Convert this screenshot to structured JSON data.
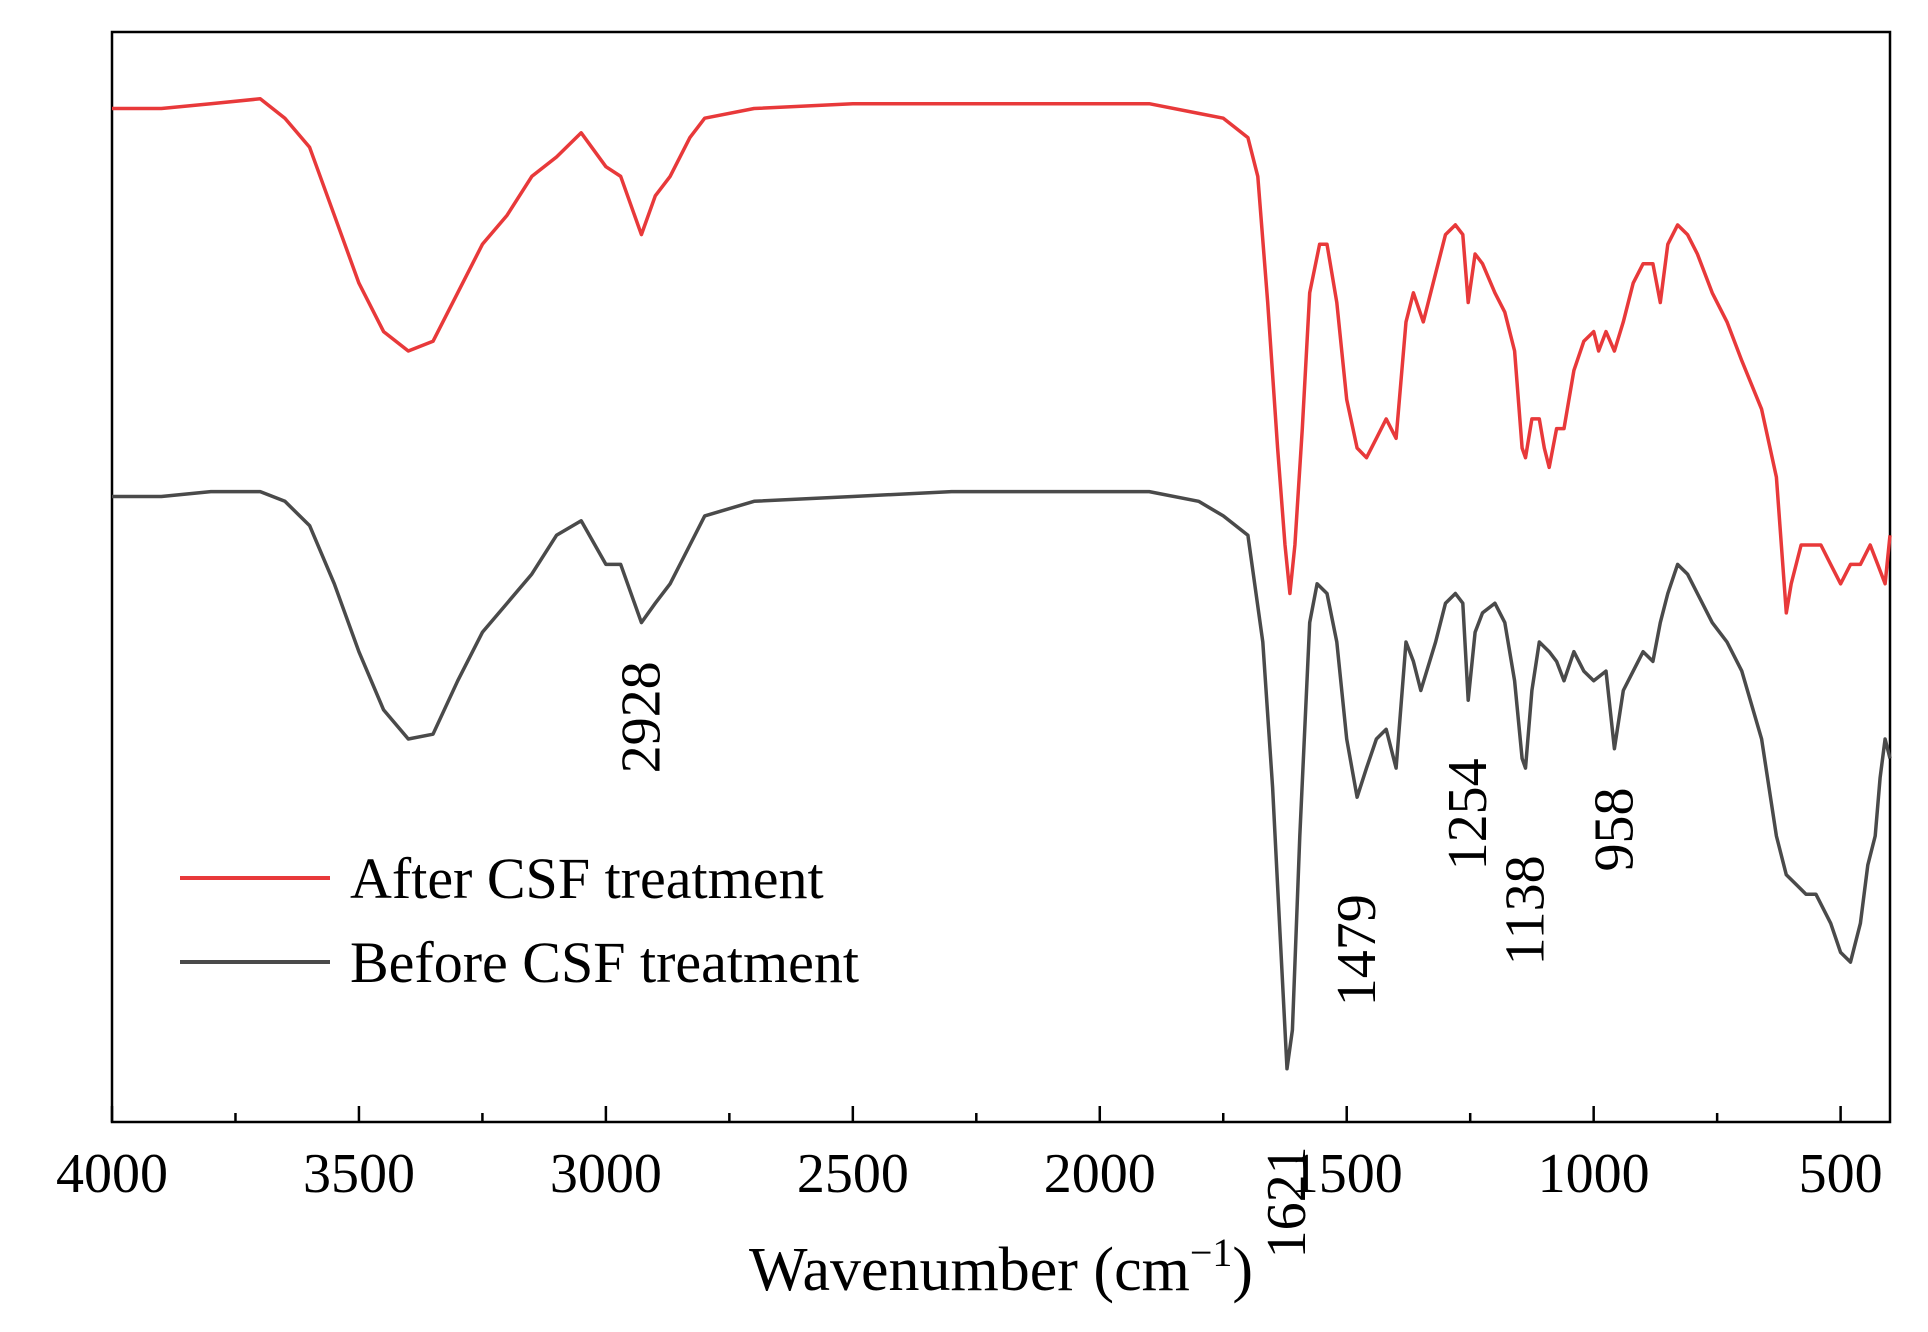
{
  "chart_data": {
    "type": "line",
    "title": "",
    "xlabel": "Wavenumber (cm",
    "xlabel_sup": "−1",
    "xlabel_close": ")",
    "ylabel": "",
    "xlim": [
      4000,
      400
    ],
    "ylim": [
      0,
      100
    ],
    "x_reversed": true,
    "grid": false,
    "x_ticks": [
      4000,
      3500,
      3000,
      2500,
      2000,
      1500,
      1000,
      500
    ],
    "x_tick_labels": [
      "4000",
      "3500",
      "3000",
      "2500",
      "2000",
      "1500",
      "1000",
      "500"
    ],
    "legend_position": "bottom-left",
    "series": [
      {
        "name": "After CSF treatment",
        "color": "#e8393a",
        "points": [
          [
            4000,
            95
          ],
          [
            3900,
            95
          ],
          [
            3800,
            95.5
          ],
          [
            3700,
            96
          ],
          [
            3650,
            94
          ],
          [
            3600,
            91
          ],
          [
            3550,
            84
          ],
          [
            3500,
            77
          ],
          [
            3450,
            72
          ],
          [
            3400,
            70
          ],
          [
            3350,
            71
          ],
          [
            3300,
            76
          ],
          [
            3250,
            81
          ],
          [
            3200,
            84
          ],
          [
            3150,
            88
          ],
          [
            3100,
            90
          ],
          [
            3050,
            92.5
          ],
          [
            3000,
            89
          ],
          [
            2970,
            88
          ],
          [
            2928,
            82
          ],
          [
            2900,
            86
          ],
          [
            2870,
            88
          ],
          [
            2830,
            92
          ],
          [
            2800,
            94
          ],
          [
            2700,
            95
          ],
          [
            2500,
            95.5
          ],
          [
            2300,
            95.5
          ],
          [
            2100,
            95.5
          ],
          [
            2000,
            95.5
          ],
          [
            1900,
            95.5
          ],
          [
            1800,
            94.5
          ],
          [
            1750,
            94
          ],
          [
            1700,
            92
          ],
          [
            1680,
            88
          ],
          [
            1660,
            75
          ],
          [
            1640,
            60
          ],
          [
            1625,
            50
          ],
          [
            1615,
            45
          ],
          [
            1605,
            50
          ],
          [
            1590,
            62
          ],
          [
            1575,
            76
          ],
          [
            1555,
            81
          ],
          [
            1540,
            81
          ],
          [
            1520,
            75
          ],
          [
            1500,
            65
          ],
          [
            1479,
            60
          ],
          [
            1460,
            59
          ],
          [
            1440,
            61
          ],
          [
            1420,
            63
          ],
          [
            1400,
            61
          ],
          [
            1380,
            73
          ],
          [
            1365,
            76
          ],
          [
            1345,
            73
          ],
          [
            1320,
            78
          ],
          [
            1300,
            82
          ],
          [
            1280,
            83
          ],
          [
            1265,
            82
          ],
          [
            1254,
            75
          ],
          [
            1240,
            80
          ],
          [
            1225,
            79
          ],
          [
            1200,
            76
          ],
          [
            1180,
            74
          ],
          [
            1160,
            70
          ],
          [
            1145,
            60
          ],
          [
            1138,
            59
          ],
          [
            1125,
            63
          ],
          [
            1110,
            63
          ],
          [
            1100,
            60
          ],
          [
            1090,
            58
          ],
          [
            1075,
            62
          ],
          [
            1060,
            62
          ],
          [
            1040,
            68
          ],
          [
            1020,
            71
          ],
          [
            1000,
            72
          ],
          [
            990,
            70
          ],
          [
            975,
            72
          ],
          [
            958,
            70
          ],
          [
            940,
            73
          ],
          [
            920,
            77
          ],
          [
            900,
            79
          ],
          [
            880,
            79
          ],
          [
            865,
            75
          ],
          [
            850,
            81
          ],
          [
            830,
            83
          ],
          [
            810,
            82
          ],
          [
            790,
            80
          ],
          [
            760,
            76
          ],
          [
            730,
            73
          ],
          [
            700,
            69
          ],
          [
            660,
            64
          ],
          [
            630,
            57
          ],
          [
            610,
            43
          ],
          [
            600,
            46
          ],
          [
            580,
            50
          ],
          [
            560,
            50
          ],
          [
            540,
            50
          ],
          [
            520,
            48
          ],
          [
            500,
            46
          ],
          [
            480,
            48
          ],
          [
            460,
            48
          ],
          [
            440,
            50
          ],
          [
            425,
            48
          ],
          [
            410,
            46
          ],
          [
            400,
            51
          ]
        ]
      },
      {
        "name": "Before CSF treatment",
        "color": "#4a4a4a",
        "points": [
          [
            4000,
            55
          ],
          [
            3900,
            55
          ],
          [
            3800,
            55.5
          ],
          [
            3700,
            55.5
          ],
          [
            3650,
            54.5
          ],
          [
            3600,
            52
          ],
          [
            3550,
            46
          ],
          [
            3500,
            39
          ],
          [
            3450,
            33
          ],
          [
            3400,
            30
          ],
          [
            3350,
            30.5
          ],
          [
            3300,
            36
          ],
          [
            3250,
            41
          ],
          [
            3200,
            44
          ],
          [
            3150,
            47
          ],
          [
            3100,
            51
          ],
          [
            3050,
            52.5
          ],
          [
            3000,
            48
          ],
          [
            2970,
            48
          ],
          [
            2928,
            42
          ],
          [
            2900,
            44
          ],
          [
            2870,
            46
          ],
          [
            2830,
            50
          ],
          [
            2800,
            53
          ],
          [
            2700,
            54.5
          ],
          [
            2500,
            55
          ],
          [
            2300,
            55.5
          ],
          [
            2100,
            55.5
          ],
          [
            2000,
            55.5
          ],
          [
            1900,
            55.5
          ],
          [
            1800,
            54.5
          ],
          [
            1750,
            53
          ],
          [
            1700,
            51
          ],
          [
            1670,
            40
          ],
          [
            1650,
            25
          ],
          [
            1635,
            10
          ],
          [
            1621,
            -4
          ],
          [
            1610,
            0
          ],
          [
            1595,
            20
          ],
          [
            1575,
            42
          ],
          [
            1560,
            46
          ],
          [
            1540,
            45
          ],
          [
            1520,
            40
          ],
          [
            1500,
            30
          ],
          [
            1479,
            24
          ],
          [
            1460,
            27
          ],
          [
            1440,
            30
          ],
          [
            1420,
            31
          ],
          [
            1400,
            27
          ],
          [
            1380,
            40
          ],
          [
            1365,
            38
          ],
          [
            1350,
            35
          ],
          [
            1320,
            40
          ],
          [
            1300,
            44
          ],
          [
            1280,
            45
          ],
          [
            1265,
            44
          ],
          [
            1254,
            34
          ],
          [
            1240,
            41
          ],
          [
            1225,
            43
          ],
          [
            1200,
            44
          ],
          [
            1180,
            42
          ],
          [
            1160,
            36
          ],
          [
            1145,
            28
          ],
          [
            1138,
            27
          ],
          [
            1125,
            35
          ],
          [
            1110,
            40
          ],
          [
            1090,
            39
          ],
          [
            1075,
            38
          ],
          [
            1060,
            36
          ],
          [
            1040,
            39
          ],
          [
            1020,
            37
          ],
          [
            1000,
            36
          ],
          [
            975,
            37
          ],
          [
            958,
            29
          ],
          [
            940,
            35
          ],
          [
            920,
            37
          ],
          [
            900,
            39
          ],
          [
            880,
            38
          ],
          [
            865,
            42
          ],
          [
            850,
            45
          ],
          [
            830,
            48
          ],
          [
            810,
            47
          ],
          [
            790,
            45
          ],
          [
            760,
            42
          ],
          [
            730,
            40
          ],
          [
            700,
            37
          ],
          [
            660,
            30
          ],
          [
            630,
            20
          ],
          [
            610,
            16
          ],
          [
            590,
            15
          ],
          [
            570,
            14
          ],
          [
            550,
            14
          ],
          [
            520,
            11
          ],
          [
            500,
            8
          ],
          [
            480,
            7
          ],
          [
            460,
            11
          ],
          [
            445,
            17
          ],
          [
            430,
            20
          ],
          [
            420,
            26
          ],
          [
            410,
            30
          ],
          [
            400,
            28
          ]
        ]
      }
    ],
    "annotations": [
      {
        "text": "2928",
        "x": 2928,
        "y": 38,
        "rotation": -90
      },
      {
        "text": "1621",
        "x": 1621,
        "y": -12,
        "rotation": -90
      },
      {
        "text": "1479",
        "x": 1479,
        "y": 14,
        "rotation": -90
      },
      {
        "text": "1254",
        "x": 1254,
        "y": 28,
        "rotation": -90
      },
      {
        "text": "1138",
        "x": 1138,
        "y": 18,
        "rotation": -90
      },
      {
        "text": "958",
        "x": 958,
        "y": 25,
        "rotation": -90
      }
    ]
  }
}
